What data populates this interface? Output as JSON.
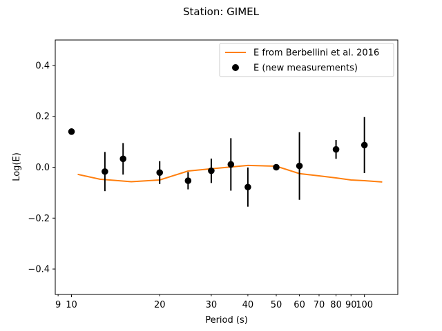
{
  "chart_data": {
    "type": "scatter",
    "title": "Station: GIMEL",
    "xlabel": "Period (s)",
    "ylabel": "Log(E)",
    "xscale": "log",
    "xlim": [
      8.8,
      130
    ],
    "ylim": [
      -0.5,
      0.5
    ],
    "xticks": [
      9,
      10,
      20,
      30,
      40,
      50,
      60,
      70,
      80,
      90,
      100
    ],
    "yticks": [
      -0.4,
      -0.2,
      0.0,
      0.2,
      0.4
    ],
    "ytick_labels": [
      "−0.4",
      "−0.2",
      "0.0",
      "0.2",
      "0.4"
    ],
    "grid": false,
    "legend_position": "top-right",
    "colors": {
      "line": "#ff7f0e",
      "points": "#000000"
    },
    "series": [
      {
        "name": "E from Berbellini et al. 2016",
        "kind": "line",
        "x": [
          10.5,
          12.5,
          16,
          20,
          25,
          30,
          40,
          50,
          60,
          70,
          80,
          90,
          100,
          115
        ],
        "y": [
          -0.028,
          -0.047,
          -0.057,
          -0.05,
          -0.015,
          -0.006,
          0.007,
          0.004,
          -0.025,
          -0.034,
          -0.042,
          -0.05,
          -0.053,
          -0.058
        ]
      },
      {
        "name": "E (new measurements)",
        "kind": "errorbar",
        "x": [
          10,
          13,
          15,
          20,
          25,
          30,
          35,
          40,
          50,
          60,
          80,
          100
        ],
        "y": [
          0.14,
          -0.017,
          0.033,
          -0.021,
          -0.053,
          -0.014,
          0.011,
          -0.078,
          0.0,
          0.005,
          0.07,
          0.087
        ],
        "err": [
          0.0,
          0.077,
          0.062,
          0.045,
          0.034,
          0.048,
          0.103,
          0.077,
          0.008,
          0.133,
          0.037,
          0.11
        ]
      }
    ]
  }
}
